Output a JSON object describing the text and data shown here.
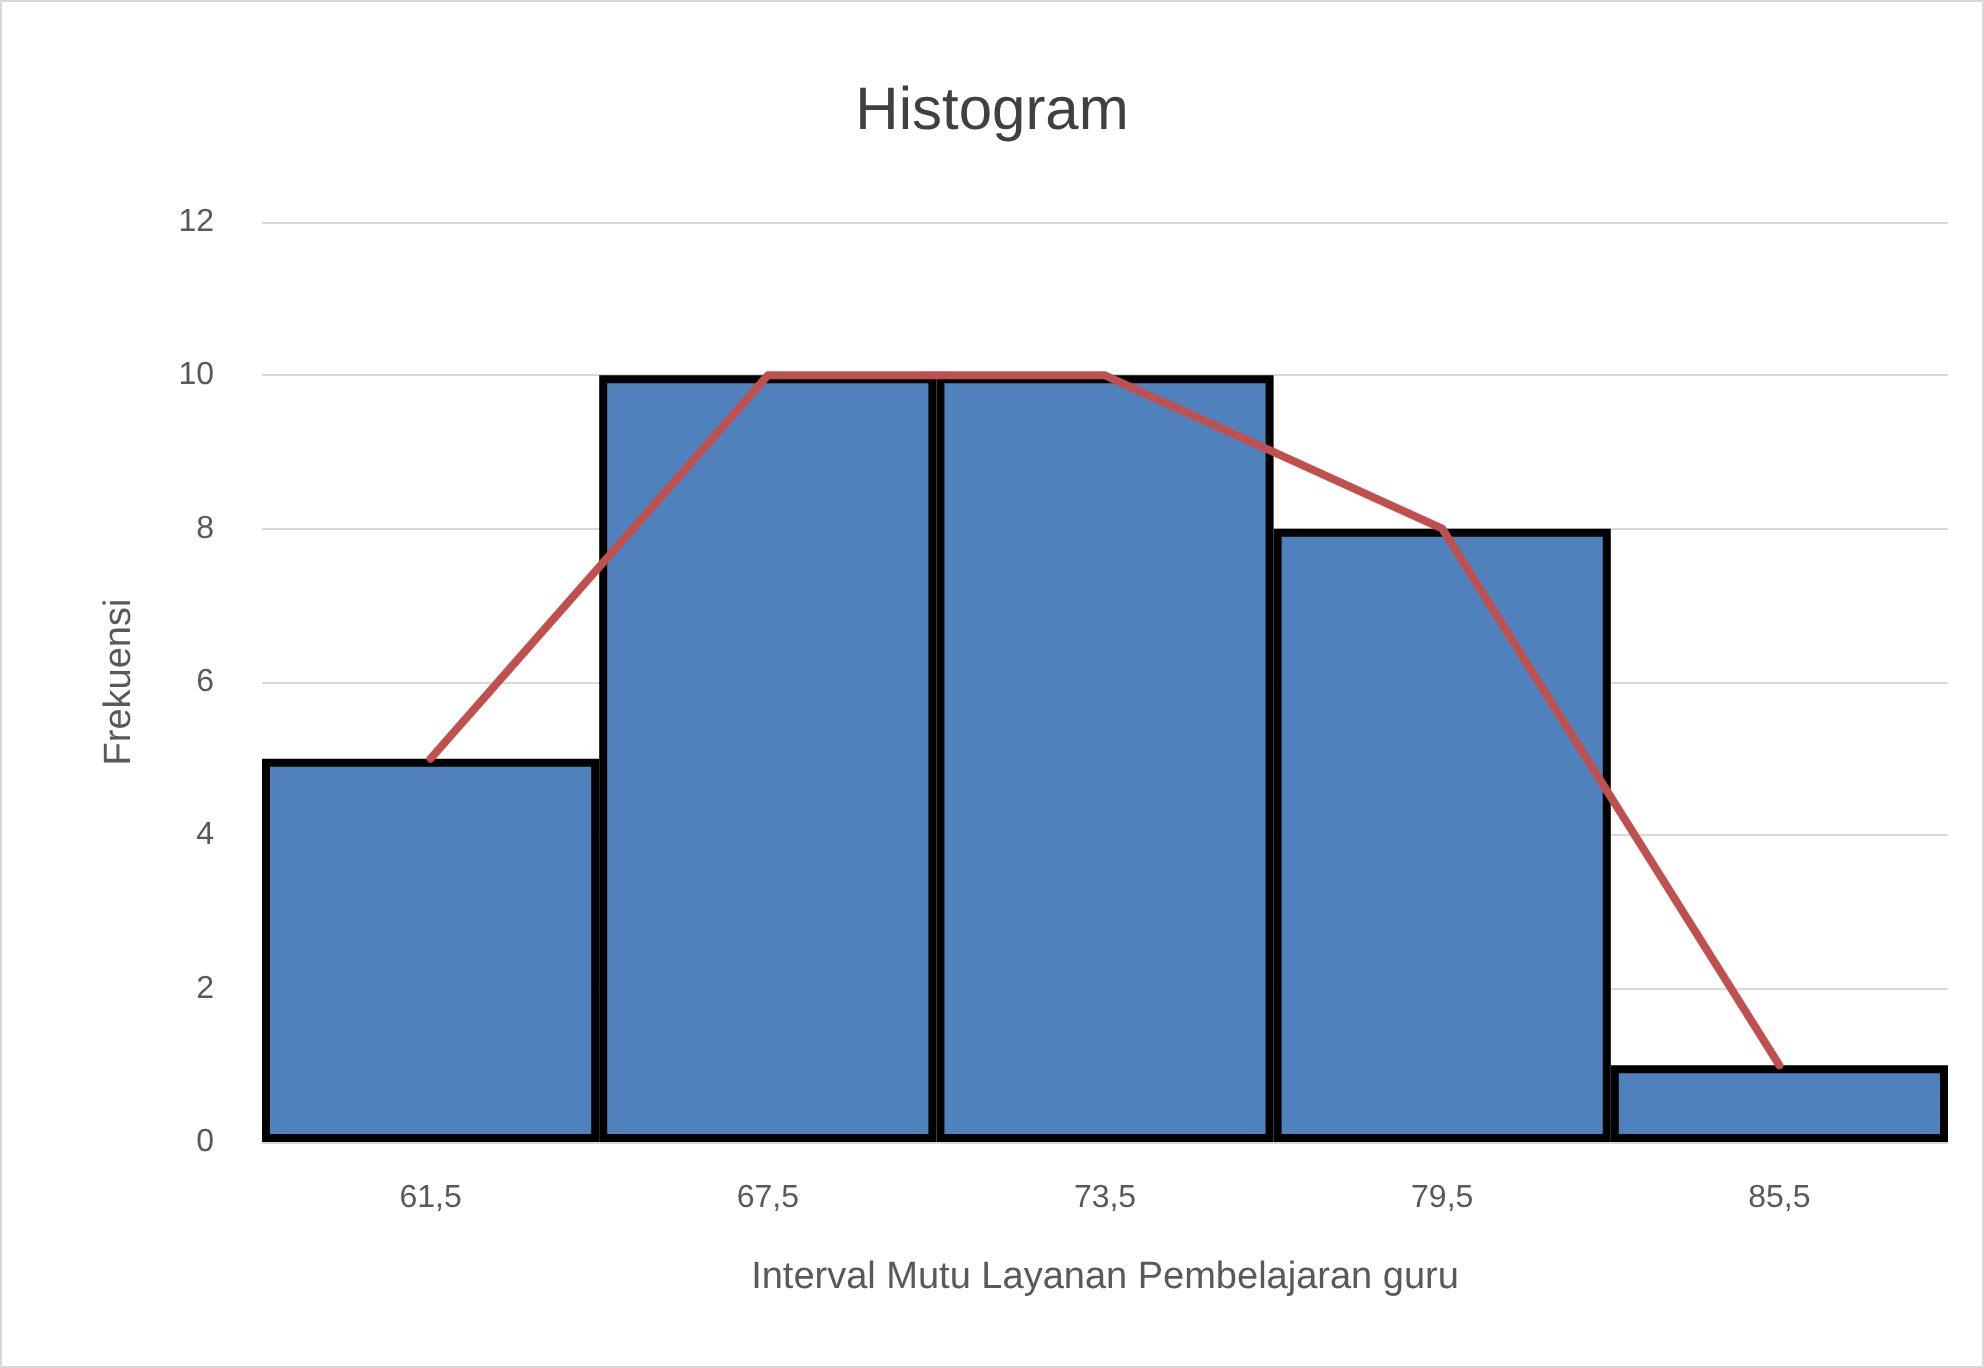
{
  "chart_data": {
    "type": "bar",
    "title": "Histogram",
    "xlabel": "Interval Mutu Layanan Pembelajaran guru",
    "ylabel": "Frekuensi",
    "categories": [
      "61,5",
      "67,5",
      "73,5",
      "79,5",
      "85,5"
    ],
    "series": [
      {
        "color": "#4f81bd",
        "values": [
          5,
          10,
          10,
          8,
          1
        ]
      },
      {
        "type": "line",
        "color": "#c0504d",
        "values": [
          5,
          10,
          10,
          8,
          1
        ]
      }
    ],
    "ylim": [
      0,
      12
    ],
    "yticks": [
      0,
      2,
      4,
      6,
      8,
      10,
      12
    ],
    "grid": "y",
    "marker": "none",
    "line_style": "solid"
  }
}
